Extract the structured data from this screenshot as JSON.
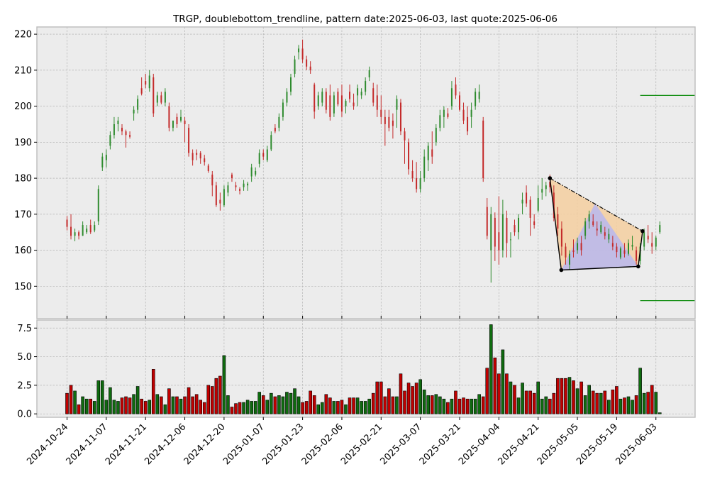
{
  "chart_data": {
    "type": "candlestick",
    "title": "TRGP, doublebottom_trendline, pattern date:2025-06-03, last quote:2025-06-06",
    "colors": {
      "up": "#2e8b2e",
      "down": "#c42a2a",
      "volume_up": "#0f6b0f",
      "volume_down": "#c00000",
      "pattern_line": "#000000",
      "support_resistance": "#0a8a0a",
      "fill_upper": "#f5cfa0",
      "fill_lower": "#b7b7ee"
    },
    "price_axis": {
      "ylim": [
        141,
        222
      ],
      "ticks": [
        150,
        160,
        170,
        180,
        190,
        200,
        210,
        220
      ]
    },
    "volume_axis": {
      "ylim": [
        -0.3,
        8.2
      ],
      "ticks": [
        "0.0",
        "2.5",
        "5.0",
        "7.5"
      ],
      "tick_values": [
        0,
        2.5,
        5.0,
        7.5
      ]
    },
    "x_axis": {
      "tick_labels": [
        "2024-10-24",
        "2024-11-07",
        "2024-11-21",
        "2024-12-06",
        "2024-12-20",
        "2025-01-07",
        "2025-01-23",
        "2025-02-06",
        "2025-02-21",
        "2025-03-07",
        "2025-03-21",
        "2025-04-04",
        "2025-04-21",
        "2025-05-05",
        "2025-05-19",
        "2025-06-03"
      ],
      "tick_index": [
        0,
        10,
        20,
        30,
        40,
        50,
        60,
        70,
        80,
        90,
        100,
        110,
        120,
        130,
        140,
        150
      ]
    },
    "ohlc": [
      [
        0,
        168.5,
        169.5,
        165.5,
        166.5,
        1.8
      ],
      [
        1,
        166.5,
        170.0,
        163.0,
        164.0,
        2.5
      ],
      [
        2,
        164.0,
        166.0,
        162.5,
        165.0,
        2.0
      ],
      [
        3,
        165.0,
        165.5,
        163.0,
        164.0,
        0.8
      ],
      [
        4,
        164.0,
        168.0,
        164.0,
        167.0,
        1.5
      ],
      [
        5,
        165.0,
        167.0,
        164.5,
        166.0,
        1.3
      ],
      [
        6,
        167.0,
        168.5,
        164.5,
        165.0,
        1.3
      ],
      [
        7,
        165.5,
        168.0,
        165.0,
        167.0,
        1.1
      ],
      [
        8,
        168.0,
        178.0,
        167.0,
        177.0,
        2.9
      ],
      [
        9,
        183.0,
        187.0,
        182.0,
        186.0,
        2.9
      ],
      [
        10,
        185.0,
        188.0,
        183.0,
        186.5,
        1.2
      ],
      [
        11,
        189.0,
        193.0,
        188.0,
        192.0,
        2.3
      ],
      [
        12,
        192.0,
        197.0,
        191.0,
        195.0,
        1.2
      ],
      [
        13,
        195.0,
        197.0,
        193.0,
        196.0,
        1.1
      ],
      [
        14,
        194.0,
        195.0,
        192.0,
        193.0,
        1.4
      ],
      [
        15,
        193.0,
        193.5,
        188.5,
        192.0,
        1.5
      ],
      [
        16,
        192.0,
        193.0,
        191.0,
        191.5,
        1.4
      ],
      [
        17,
        198.0,
        200.0,
        196.0,
        199.0,
        1.7
      ],
      [
        18,
        199.0,
        203.0,
        198.0,
        202.0,
        2.4
      ],
      [
        19,
        205.0,
        208.0,
        203.0,
        203.5,
        1.3
      ],
      [
        20,
        207.0,
        209.0,
        205.0,
        206.0,
        1.1
      ],
      [
        21,
        205.0,
        210.0,
        204.0,
        208.5,
        1.2
      ],
      [
        22,
        208.0,
        209.0,
        197.0,
        198.0,
        3.9
      ],
      [
        23,
        201.0,
        204.0,
        200.0,
        203.0,
        1.7
      ],
      [
        24,
        203.0,
        204.0,
        200.5,
        201.0,
        1.5
      ],
      [
        25,
        201.0,
        205.0,
        200.0,
        204.0,
        0.8
      ],
      [
        26,
        200.0,
        201.0,
        193.0,
        194.0,
        2.2
      ],
      [
        27,
        194.0,
        196.0,
        193.0,
        196.0,
        1.5
      ],
      [
        28,
        197.0,
        198.0,
        194.0,
        195.0,
        1.5
      ],
      [
        29,
        196.0,
        199.0,
        195.5,
        197.0,
        1.3
      ],
      [
        30,
        196.0,
        197.0,
        190.0,
        195.0,
        1.5
      ],
      [
        31,
        194.0,
        195.0,
        186.0,
        187.0,
        2.3
      ],
      [
        32,
        187.0,
        188.0,
        183.5,
        185.0,
        1.5
      ],
      [
        33,
        187.0,
        188.0,
        185.0,
        186.5,
        1.7
      ],
      [
        34,
        187.0,
        187.5,
        184.0,
        185.5,
        1.2
      ],
      [
        35,
        185.5,
        186.5,
        183.5,
        184.5,
        1.0
      ],
      [
        36,
        183.5,
        184.0,
        181.5,
        182.0,
        2.5
      ],
      [
        37,
        181.0,
        182.0,
        175.0,
        178.0,
        2.4
      ],
      [
        38,
        178.0,
        179.0,
        172.0,
        172.5,
        3.1
      ],
      [
        39,
        174.0,
        176.0,
        171.0,
        173.0,
        3.3
      ],
      [
        40,
        172.5,
        178.0,
        172.0,
        177.0,
        5.1
      ],
      [
        41,
        176.0,
        179.0,
        175.0,
        178.0,
        1.6
      ],
      [
        42,
        181.0,
        181.5,
        179.0,
        180.0,
        0.6
      ],
      [
        43,
        178.0,
        179.0,
        176.5,
        177.5,
        0.9
      ],
      [
        44,
        177.0,
        177.5,
        175.5,
        176.5,
        1.0
      ],
      [
        45,
        177.5,
        179.5,
        176.5,
        178.5,
        1.0
      ],
      [
        46,
        178.0,
        179.0,
        176.5,
        178.5,
        1.2
      ],
      [
        47,
        180.5,
        184.0,
        179.0,
        183.0,
        1.1
      ],
      [
        48,
        181.0,
        183.0,
        180.5,
        182.0,
        1.1
      ],
      [
        49,
        184.0,
        188.0,
        183.0,
        187.0,
        1.9
      ],
      [
        50,
        187.0,
        188.0,
        185.0,
        186.0,
        1.6
      ],
      [
        51,
        185.0,
        189.0,
        184.5,
        188.0,
        1.2
      ],
      [
        52,
        188.0,
        193.0,
        187.5,
        192.0,
        1.8
      ],
      [
        53,
        194.0,
        195.0,
        192.5,
        193.0,
        1.5
      ],
      [
        54,
        194.0,
        198.0,
        193.0,
        197.0,
        1.6
      ],
      [
        55,
        197.0,
        202.0,
        196.0,
        201.0,
        1.5
      ],
      [
        56,
        201.0,
        205.0,
        200.0,
        204.0,
        1.9
      ],
      [
        57,
        204.0,
        209.0,
        203.0,
        208.0,
        1.8
      ],
      [
        58,
        209.0,
        214.0,
        208.0,
        213.0,
        2.2
      ],
      [
        59,
        215.0,
        217.0,
        213.0,
        216.0,
        1.5
      ],
      [
        60,
        216.0,
        218.5,
        212.0,
        213.0,
        1.0
      ],
      [
        61,
        213.0,
        214.0,
        210.0,
        211.0,
        1.1
      ],
      [
        62,
        211.0,
        212.5,
        209.0,
        210.0,
        2.0
      ],
      [
        63,
        206.0,
        206.5,
        196.5,
        198.5,
        1.6
      ],
      [
        64,
        200.0,
        204.0,
        199.0,
        203.0,
        0.8
      ],
      [
        65,
        201.0,
        205.0,
        200.0,
        204.0,
        1.0
      ],
      [
        66,
        204.0,
        205.0,
        198.0,
        199.0,
        1.7
      ],
      [
        67,
        203.0,
        206.0,
        196.0,
        197.0,
        1.4
      ],
      [
        68,
        198.0,
        204.0,
        197.0,
        203.0,
        1.1
      ],
      [
        69,
        204.0,
        205.0,
        200.0,
        200.5,
        1.1
      ],
      [
        70,
        203.0,
        206.0,
        197.0,
        198.5,
        1.2
      ],
      [
        71,
        200.0,
        202.0,
        198.0,
        201.5,
        0.8
      ],
      [
        72,
        204.0,
        206.0,
        201.0,
        202.0,
        1.4
      ],
      [
        73,
        201.0,
        203.5,
        199.0,
        200.0,
        1.4
      ],
      [
        74,
        203.0,
        206.0,
        200.0,
        205.0,
        1.4
      ],
      [
        75,
        203.0,
        205.0,
        202.0,
        204.0,
        1.1
      ],
      [
        76,
        204.0,
        208.0,
        203.0,
        207.0,
        1.1
      ],
      [
        77,
        208.0,
        211.0,
        207.0,
        210.0,
        1.3
      ],
      [
        78,
        205.0,
        206.5,
        200.0,
        201.0,
        1.8
      ],
      [
        79,
        203.0,
        206.0,
        197.0,
        199.0,
        2.8
      ],
      [
        80,
        199.0,
        203.0,
        195.0,
        197.0,
        2.8
      ],
      [
        81,
        197.0,
        199.0,
        189.0,
        195.0,
        1.5
      ],
      [
        82,
        197.0,
        199.0,
        193.0,
        194.0,
        2.2
      ],
      [
        83,
        196.0,
        198.0,
        191.0,
        194.5,
        1.5
      ],
      [
        84,
        199.0,
        203.0,
        194.0,
        202.0,
        1.5
      ],
      [
        85,
        201.0,
        202.0,
        192.0,
        193.0,
        3.5
      ],
      [
        86,
        193.0,
        194.0,
        184.0,
        190.5,
        2.0
      ],
      [
        87,
        190.0,
        191.0,
        181.0,
        182.5,
        2.7
      ],
      [
        88,
        182.0,
        185.0,
        179.0,
        180.0,
        2.4
      ],
      [
        89,
        180.0,
        184.5,
        176.0,
        177.0,
        2.7
      ],
      [
        90,
        177.0,
        182.0,
        176.0,
        180.0,
        3.0
      ],
      [
        91,
        180.0,
        188.0,
        179.0,
        186.0,
        2.1
      ],
      [
        92,
        185.0,
        190.0,
        182.0,
        189.0,
        1.6
      ],
      [
        93,
        188.0,
        193.0,
        184.0,
        186.0,
        1.6
      ],
      [
        94,
        190.0,
        195.0,
        189.0,
        194.0,
        1.7
      ],
      [
        95,
        194.0,
        199.0,
        193.0,
        197.5,
        1.5
      ],
      [
        96,
        197.0,
        200.0,
        194.0,
        199.0,
        1.3
      ],
      [
        97,
        198.0,
        199.5,
        196.5,
        197.0,
        1.0
      ],
      [
        98,
        200.0,
        207.0,
        199.0,
        205.0,
        1.3
      ],
      [
        99,
        206.0,
        208.0,
        202.0,
        203.0,
        2.0
      ],
      [
        100,
        203.0,
        204.0,
        198.5,
        199.0,
        1.3
      ],
      [
        101,
        199.0,
        201.0,
        195.0,
        196.0,
        1.4
      ],
      [
        102,
        197.0,
        200.0,
        192.0,
        193.0,
        1.3
      ],
      [
        103,
        197.0,
        201.0,
        194.0,
        199.0,
        1.3
      ],
      [
        104,
        200.0,
        205.0,
        199.0,
        204.0,
        1.3
      ],
      [
        105,
        202.0,
        206.0,
        201.0,
        204.0,
        1.7
      ],
      [
        106,
        196.0,
        197.0,
        179.0,
        180.0,
        1.5
      ],
      [
        107,
        172.0,
        174.5,
        163.0,
        164.0,
        4.0
      ],
      [
        108,
        160.0,
        172.0,
        151.0,
        170.0,
        7.8
      ],
      [
        109,
        169.0,
        170.5,
        157.0,
        161.0,
        4.9
      ],
      [
        110,
        165.0,
        175.0,
        156.0,
        160.0,
        3.5
      ],
      [
        111,
        160.0,
        174.0,
        158.0,
        170.0,
        5.6
      ],
      [
        112,
        169.0,
        171.0,
        158.0,
        162.0,
        3.5
      ],
      [
        113,
        163.0,
        165.0,
        158.0,
        163.0,
        2.8
      ],
      [
        114,
        167.0,
        168.5,
        164.0,
        165.0,
        2.5
      ],
      [
        115,
        165.0,
        170.0,
        163.0,
        169.0,
        1.4
      ],
      [
        116,
        173.0,
        176.0,
        170.0,
        174.0,
        2.7
      ],
      [
        117,
        176.0,
        178.0,
        172.0,
        173.0,
        2.0
      ],
      [
        118,
        174.0,
        175.0,
        164.0,
        169.0,
        2.0
      ],
      [
        119,
        168.0,
        170.0,
        166.0,
        167.0,
        1.8
      ],
      [
        120,
        171.0,
        178.0,
        170.5,
        174.5,
        2.8
      ],
      [
        121,
        176.0,
        180.0,
        174.0,
        177.0,
        1.3
      ],
      [
        122,
        177.0,
        179.0,
        175.0,
        178.0,
        1.5
      ],
      [
        123,
        179.0,
        181.0,
        176.0,
        177.5,
        1.3
      ],
      [
        124,
        176.0,
        178.0,
        168.0,
        169.0,
        1.8
      ],
      [
        125,
        170.0,
        172.0,
        164.0,
        166.0,
        3.1
      ],
      [
        126,
        166.0,
        168.0,
        158.5,
        161.0,
        3.1
      ],
      [
        127,
        161.0,
        162.0,
        156.0,
        158.0,
        3.1
      ],
      [
        128,
        156.0,
        160.0,
        154.5,
        159.0,
        3.2
      ],
      [
        129,
        160.0,
        163.0,
        158.0,
        159.5,
        2.9
      ],
      [
        130,
        160.0,
        163.5,
        159.0,
        162.0,
        2.2
      ],
      [
        131,
        162.0,
        164.0,
        158.5,
        160.0,
        2.8
      ],
      [
        132,
        164.0,
        169.0,
        163.0,
        168.0,
        1.6
      ],
      [
        133,
        168.0,
        171.0,
        166.0,
        170.0,
        2.5
      ],
      [
        134,
        168.0,
        170.0,
        166.5,
        167.0,
        2.0
      ],
      [
        135,
        166.0,
        168.0,
        164.0,
        165.5,
        1.8
      ],
      [
        136,
        165.0,
        168.0,
        164.5,
        167.0,
        1.8
      ],
      [
        137,
        165.0,
        166.5,
        163.0,
        164.0,
        2.0
      ],
      [
        138,
        163.0,
        166.0,
        162.0,
        164.5,
        1.2
      ],
      [
        139,
        162.0,
        164.0,
        160.0,
        161.0,
        2.1
      ],
      [
        140,
        161.0,
        162.0,
        158.0,
        159.5,
        2.4
      ],
      [
        141,
        158.0,
        161.0,
        157.5,
        160.5,
        1.3
      ],
      [
        142,
        160.0,
        162.0,
        158.0,
        159.0,
        1.4
      ],
      [
        143,
        159.0,
        163.0,
        158.5,
        162.0,
        1.5
      ],
      [
        144,
        161.0,
        164.0,
        160.0,
        161.5,
        1.2
      ],
      [
        145,
        160.0,
        161.0,
        156.0,
        157.0,
        1.6
      ],
      [
        146,
        157.0,
        162.0,
        156.0,
        161.0,
        4.0
      ],
      [
        147,
        161.0,
        166.0,
        160.0,
        165.0,
        1.8
      ],
      [
        148,
        164.0,
        167.0,
        162.0,
        163.0,
        1.9
      ],
      [
        149,
        162.0,
        165.0,
        159.0,
        161.0,
        2.5
      ],
      [
        150,
        161.0,
        164.0,
        160.0,
        163.5,
        1.9
      ],
      [
        151,
        165.0,
        168.0,
        164.5,
        167.0,
        0.1
      ]
    ],
    "pattern_points": [
      [
        123,
        180.0
      ],
      [
        125.9,
        154.5
      ],
      [
        145.5,
        155.5
      ],
      [
        146.6,
        165.3
      ]
    ],
    "pattern_peak": [
      134.5,
      173.0
    ],
    "levels": {
      "resistance": 203.0,
      "support": 146.0,
      "level_start_index": 146
    }
  }
}
